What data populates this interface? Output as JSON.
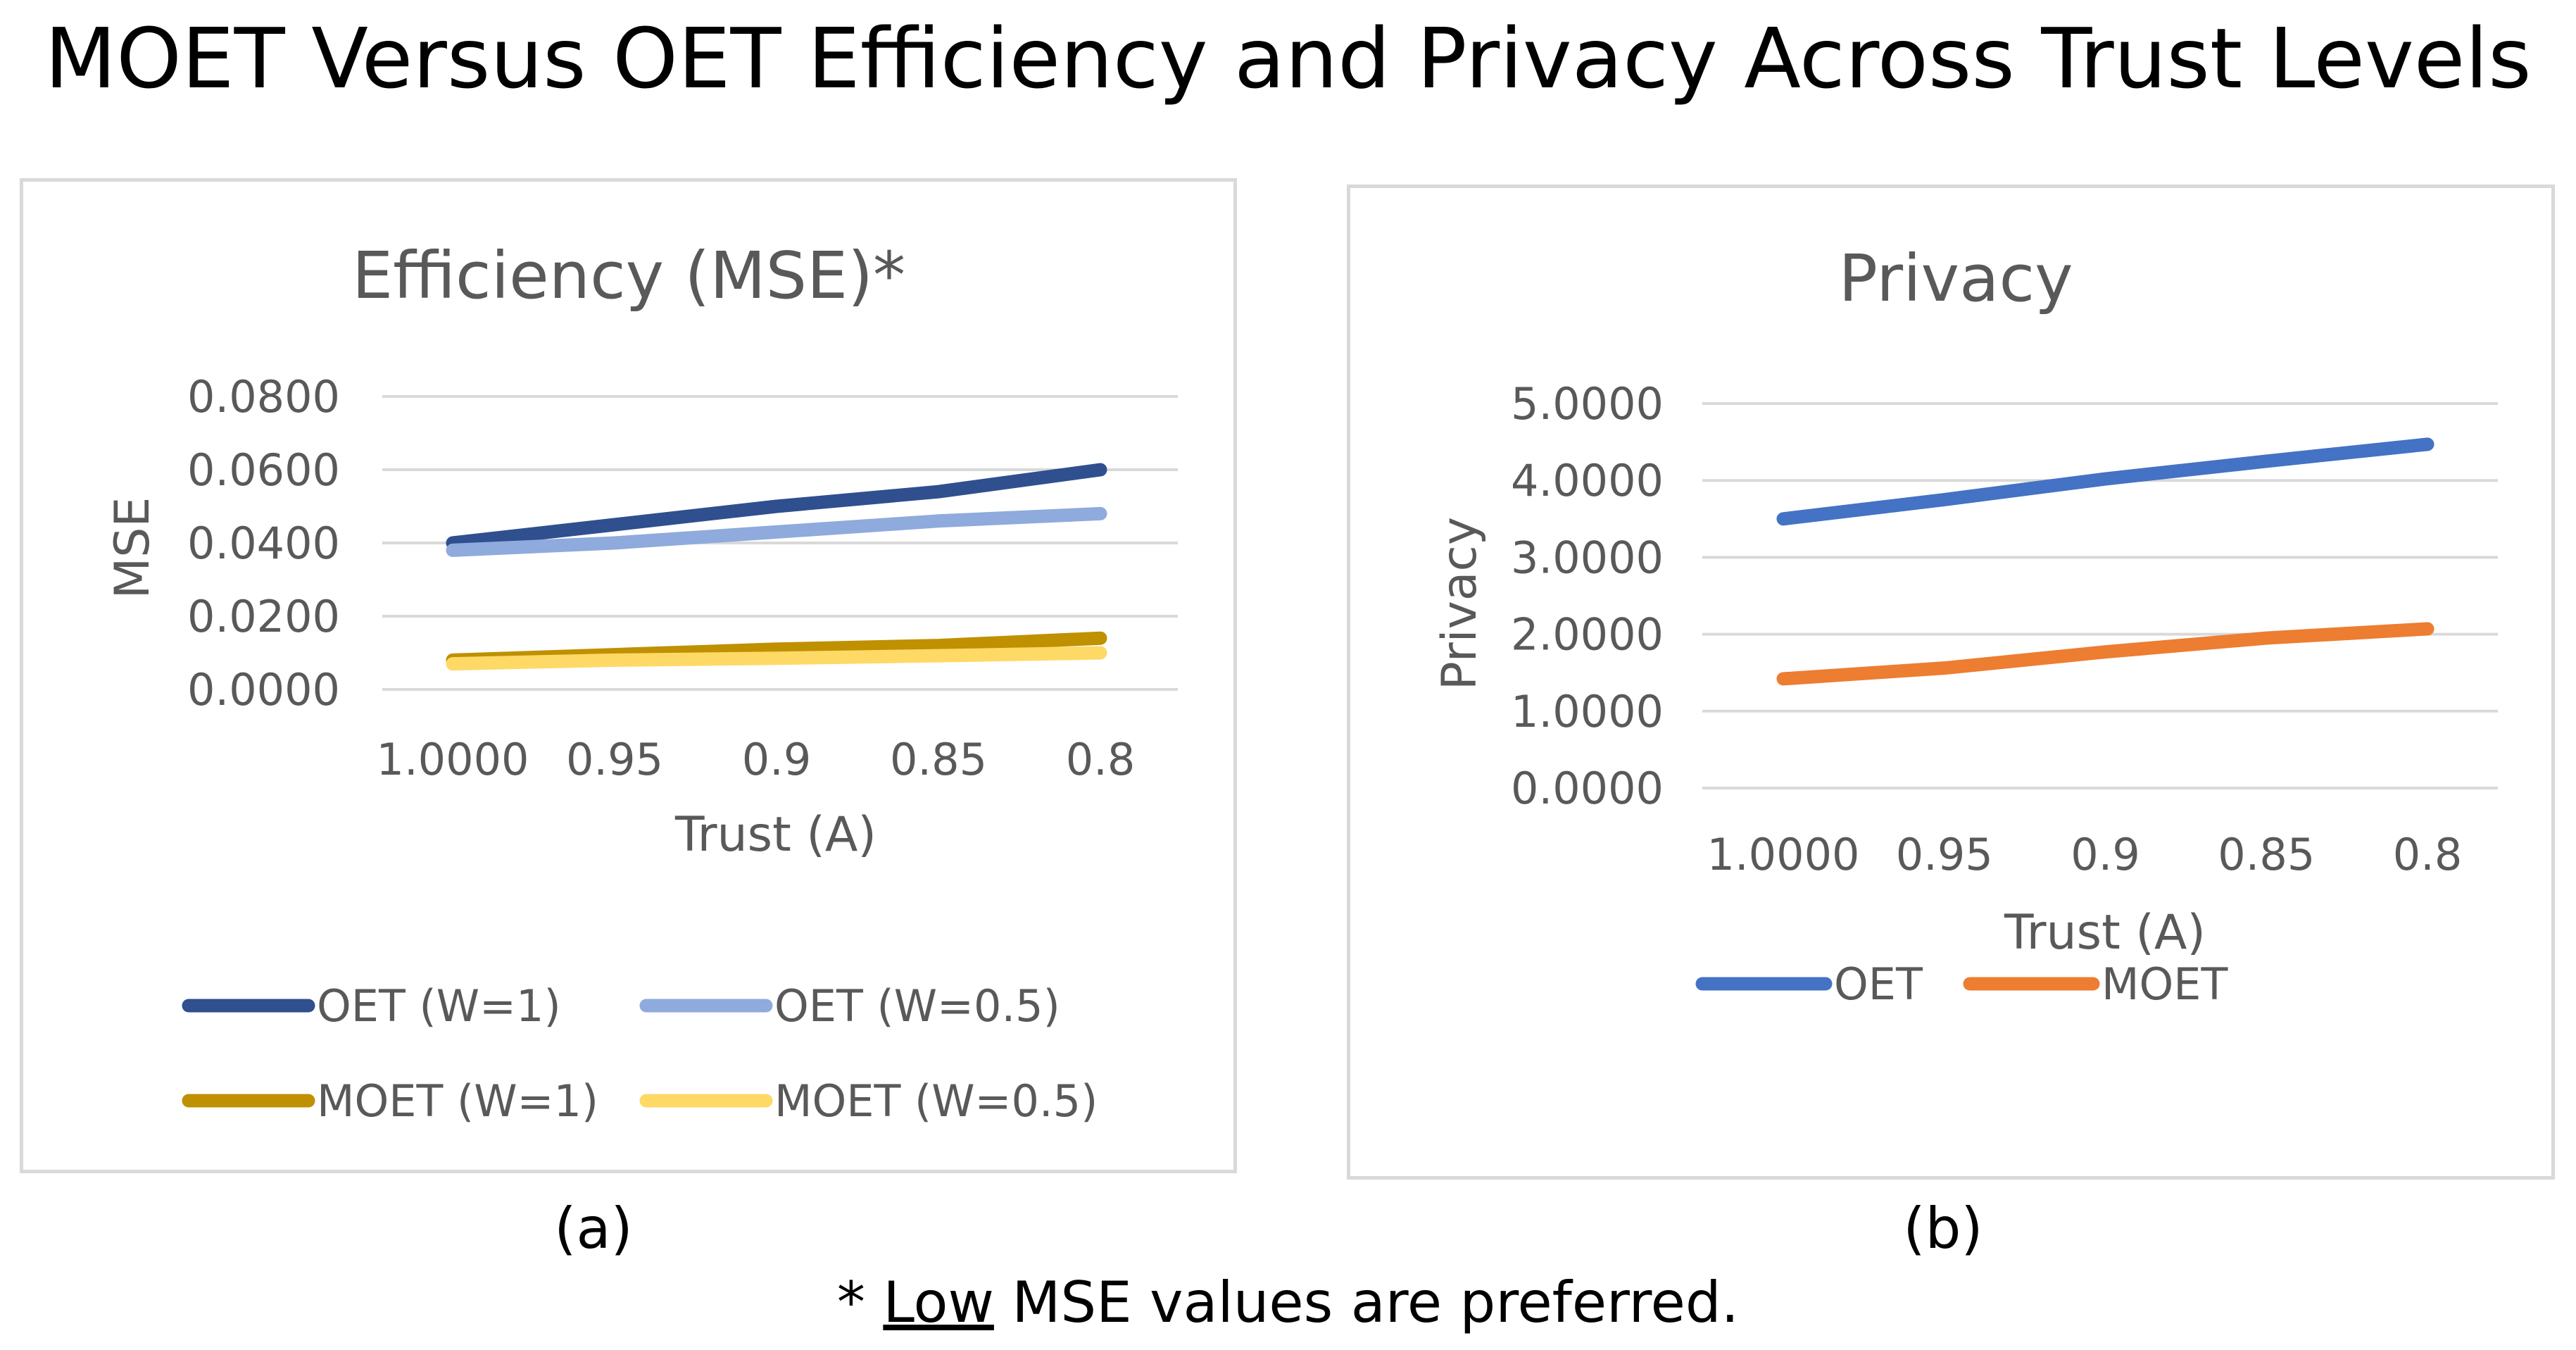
{
  "figure": {
    "title": "MOET Versus OET Efficiency and Privacy Across Trust Levels",
    "caption_a": "(a)",
    "caption_b": "(b)",
    "footnote_prefix": "* ",
    "footnote_emph": "Low",
    "footnote_suffix": " MSE values are preferred."
  },
  "chart_data": [
    {
      "type": "line",
      "title": "Efficiency (MSE)*",
      "xlabel": "Trust (A)",
      "ylabel": "MSE",
      "categories": [
        "1.0000",
        "0.95",
        "0.9",
        "0.85",
        "0.8"
      ],
      "ylim": [
        0,
        0.08
      ],
      "yticks": [
        "0.0000",
        "0.0200",
        "0.0400",
        "0.0600",
        "0.0800"
      ],
      "grid": true,
      "legend": "bottom",
      "series": [
        {
          "name": "OET (W=1)",
          "color": "#2f4f8f",
          "values": [
            0.04,
            0.045,
            0.05,
            0.054,
            0.06
          ]
        },
        {
          "name": "OET (W=0.5)",
          "color": "#8faadc",
          "values": [
            0.038,
            0.04,
            0.043,
            0.046,
            0.048
          ]
        },
        {
          "name": "MOET (W=1)",
          "color": "#bf9000",
          "values": [
            0.008,
            0.0095,
            0.011,
            0.012,
            0.014
          ]
        },
        {
          "name": "MOET (W=0.5)",
          "color": "#ffd966",
          "values": [
            0.007,
            0.008,
            0.0085,
            0.0092,
            0.01
          ]
        }
      ]
    },
    {
      "type": "line",
      "title": "Privacy",
      "xlabel": "Trust (A)",
      "ylabel": "Privacy",
      "categories": [
        "1.0000",
        "0.95",
        "0.9",
        "0.85",
        "0.8"
      ],
      "ylim": [
        0,
        5
      ],
      "yticks": [
        "0.0000",
        "1.0000",
        "2.0000",
        "3.0000",
        "4.0000",
        "5.0000"
      ],
      "grid": true,
      "legend": "bottom",
      "series": [
        {
          "name": "OET",
          "color": "#4472c4",
          "values": [
            3.5,
            3.75,
            4.02,
            4.25,
            4.47
          ]
        },
        {
          "name": "MOET",
          "color": "#ed7d31",
          "values": [
            1.42,
            1.56,
            1.77,
            1.95,
            2.07
          ]
        }
      ]
    }
  ]
}
